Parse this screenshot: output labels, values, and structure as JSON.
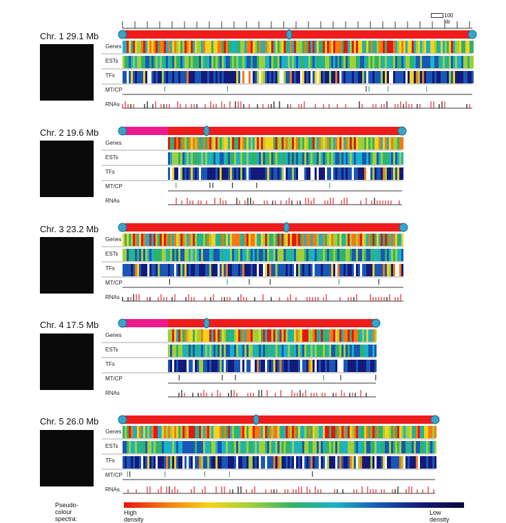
{
  "scale": {
    "label": "100 kb"
  },
  "tracks": [
    "Genes",
    "ESTs",
    "TFs",
    "MT/CP",
    "RNAs"
  ],
  "chromosomes": [
    {
      "title": "Chr. 1  29.1 Mb",
      "length_mb": 29.1
    },
    {
      "title": "Chr. 2  19.6 Mb",
      "length_mb": 19.6
    },
    {
      "title": "Chr. 3  23.2 Mb",
      "length_mb": 23.2
    },
    {
      "title": "Chr. 4  17.5 Mb",
      "length_mb": 17.5
    },
    {
      "title": "Chr. 5  26.0 Mb",
      "length_mb": 26.0
    }
  ],
  "legend": {
    "title": "Pseudo-colour spectra:",
    "high": "High density",
    "low": "Low density",
    "colors": [
      "#e8150f",
      "#f57a12",
      "#f7d21b",
      "#9fd03a",
      "#2fb36a",
      "#19b2c8",
      "#1a57b5",
      "#141a7a",
      "#0a0a3a"
    ]
  }
}
